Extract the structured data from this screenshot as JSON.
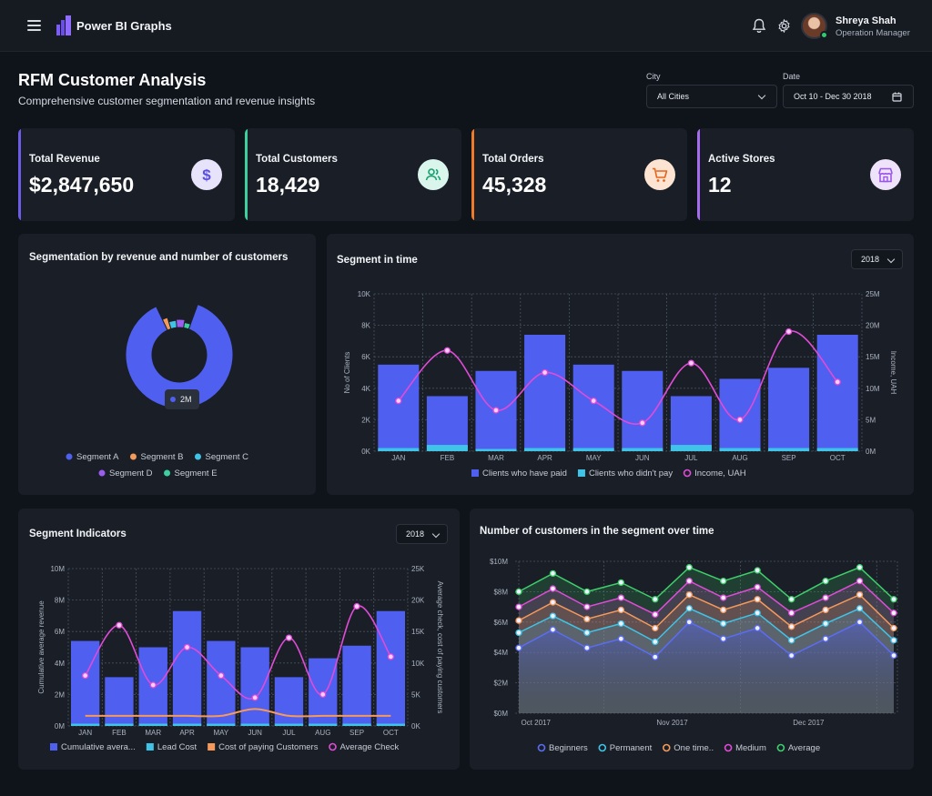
{
  "app": {
    "title": "Power BI Graphs"
  },
  "user": {
    "name": "Shreya Shah",
    "role": "Operation Manager"
  },
  "page": {
    "title": "RFM Customer Analysis",
    "subtitle": "Comprehensive customer segmentation and revenue insights"
  },
  "filters": {
    "city": {
      "label": "City",
      "value": "All Cities"
    },
    "date": {
      "label": "Date",
      "value": "Oct 10 - Dec 30 2018"
    }
  },
  "kpis": [
    {
      "label": "Total Revenue",
      "value": "$2,847,650",
      "icon": "dollar-icon",
      "color": "#6c5ce7"
    },
    {
      "label": "Total Customers",
      "value": "18,429",
      "icon": "users-icon",
      "color": "#3ecf9e"
    },
    {
      "label": "Total Orders",
      "value": "45,328",
      "icon": "cart-icon",
      "color": "#f07a2a"
    },
    {
      "label": "Active Stores",
      "value": "12",
      "icon": "store-icon",
      "color": "#a66cf0"
    }
  ],
  "seg_donut": {
    "title": "Segmentation by revenue and number of customers",
    "tooltip": "2M",
    "chart_data": {
      "type": "pie",
      "series": [
        {
          "name": "Segment A",
          "value": 2.0,
          "color": "#4f5ff0"
        },
        {
          "name": "Segment B",
          "value": 0.05,
          "color": "#f59a5a"
        },
        {
          "name": "Segment C",
          "value": 0.08,
          "color": "#3fc4e8"
        },
        {
          "name": "Segment D",
          "value": 0.09,
          "color": "#9b5cf0"
        },
        {
          "name": "Segment E",
          "value": 0.07,
          "color": "#3ecfa0"
        }
      ]
    }
  },
  "segment_time": {
    "title": "Segment in time",
    "year": "2018",
    "chart_data": {
      "type": "bar",
      "categories": [
        "JAN",
        "FEB",
        "MAR",
        "APR",
        "MAY",
        "JUN",
        "JUL",
        "AUG",
        "SEP",
        "OCT"
      ],
      "ylabel": "No of Clients",
      "y2label": "Income, UAH",
      "yticks": [
        "0K",
        "2K",
        "4K",
        "6K",
        "8K",
        "10K"
      ],
      "y2ticks": [
        "0M",
        "5M",
        "10M",
        "15M",
        "20M",
        "25M"
      ],
      "ylim": [
        0,
        10000
      ],
      "y2lim": [
        0,
        25
      ],
      "series": [
        {
          "name": "Clients who have paid",
          "values": [
            5500,
            3500,
            5100,
            7400,
            5500,
            5100,
            3500,
            4600,
            5300,
            7400
          ],
          "color": "#4f5ff0"
        },
        {
          "name": "Clients who didn't pay",
          "values": [
            200,
            400,
            100,
            200,
            200,
            200,
            400,
            200,
            200,
            200
          ],
          "color": "#3fc4e8"
        },
        {
          "name": "Income, UAH",
          "values": [
            8,
            16,
            6.5,
            12.5,
            8,
            4.5,
            14,
            5,
            19,
            11
          ],
          "color": "#e14bd8",
          "axis": "y2"
        }
      ]
    }
  },
  "seg_indicators": {
    "title": "Segment Indicators",
    "year": "2018",
    "chart_data": {
      "type": "bar",
      "categories": [
        "JAN",
        "FEB",
        "MAR",
        "APR",
        "MAY",
        "JUN",
        "JUL",
        "AUG",
        "SEP",
        "OCT"
      ],
      "ylabel": "Cumulative average revenue",
      "y2label": "Average check, cost of paying customers",
      "yticks": [
        "0M",
        "2M",
        "4M",
        "6M",
        "8M",
        "10M"
      ],
      "y2ticks": [
        "0K",
        "5K",
        "10K",
        "15K",
        "20K",
        "25K"
      ],
      "ylim": [
        0,
        10
      ],
      "y2lim": [
        0,
        25000
      ],
      "series": [
        {
          "name": "Cumulative avera...",
          "values": [
            5.4,
            3.1,
            5.0,
            7.3,
            5.4,
            5.0,
            3.1,
            4.3,
            5.1,
            7.3
          ],
          "color": "#4f5ff0"
        },
        {
          "name": "Lead Cost",
          "values": [
            0.1,
            0.1,
            0.1,
            0.1,
            0.1,
            0.1,
            0.1,
            0.1,
            0.1,
            0.1
          ],
          "color": "#3fc4e8"
        },
        {
          "name": "Cost of paying Customers",
          "values": [
            1600,
            1600,
            1600,
            1600,
            1600,
            2700,
            1600,
            1600,
            1600,
            1600
          ],
          "color": "#f59a5a",
          "axis": "y2"
        },
        {
          "name": "Average Check",
          "values": [
            8000,
            16000,
            6500,
            12500,
            8000,
            4500,
            14000,
            5000,
            19000,
            11000
          ],
          "color": "#e14bd8",
          "axis": "y2"
        }
      ]
    }
  },
  "customers_time": {
    "title": "Number of customers in the segment over time",
    "chart_data": {
      "type": "line",
      "xticks": [
        "Oct 2017",
        "Nov 2017",
        "Dec 2017"
      ],
      "yticks": [
        "$0M",
        "$2M",
        "$4M",
        "$6M",
        "$8M",
        "$10M"
      ],
      "ylim": [
        0,
        10
      ],
      "series": [
        {
          "name": "Beginners",
          "values": [
            4.3,
            5.5,
            4.3,
            4.9,
            3.7,
            6.0,
            4.9,
            5.6,
            3.8,
            4.9,
            6.0,
            3.8
          ],
          "color": "#5b6cf5"
        },
        {
          "name": "Permanent",
          "values": [
            5.3,
            6.4,
            5.3,
            5.9,
            4.7,
            6.9,
            5.9,
            6.6,
            4.8,
            5.9,
            6.9,
            4.8
          ],
          "color": "#3fc4e8"
        },
        {
          "name": "One time..",
          "values": [
            6.1,
            7.3,
            6.2,
            6.8,
            5.6,
            7.8,
            6.8,
            7.5,
            5.7,
            6.8,
            7.8,
            5.6
          ],
          "color": "#f59a5a"
        },
        {
          "name": "Medium",
          "values": [
            7.0,
            8.2,
            7.0,
            7.6,
            6.5,
            8.7,
            7.6,
            8.3,
            6.6,
            7.6,
            8.7,
            6.6
          ],
          "color": "#e14bd8"
        },
        {
          "name": "Average",
          "values": [
            8.0,
            9.2,
            8.0,
            8.6,
            7.5,
            9.6,
            8.7,
            9.4,
            7.5,
            8.7,
            9.6,
            7.5
          ],
          "color": "#3ecf6a"
        }
      ]
    }
  }
}
